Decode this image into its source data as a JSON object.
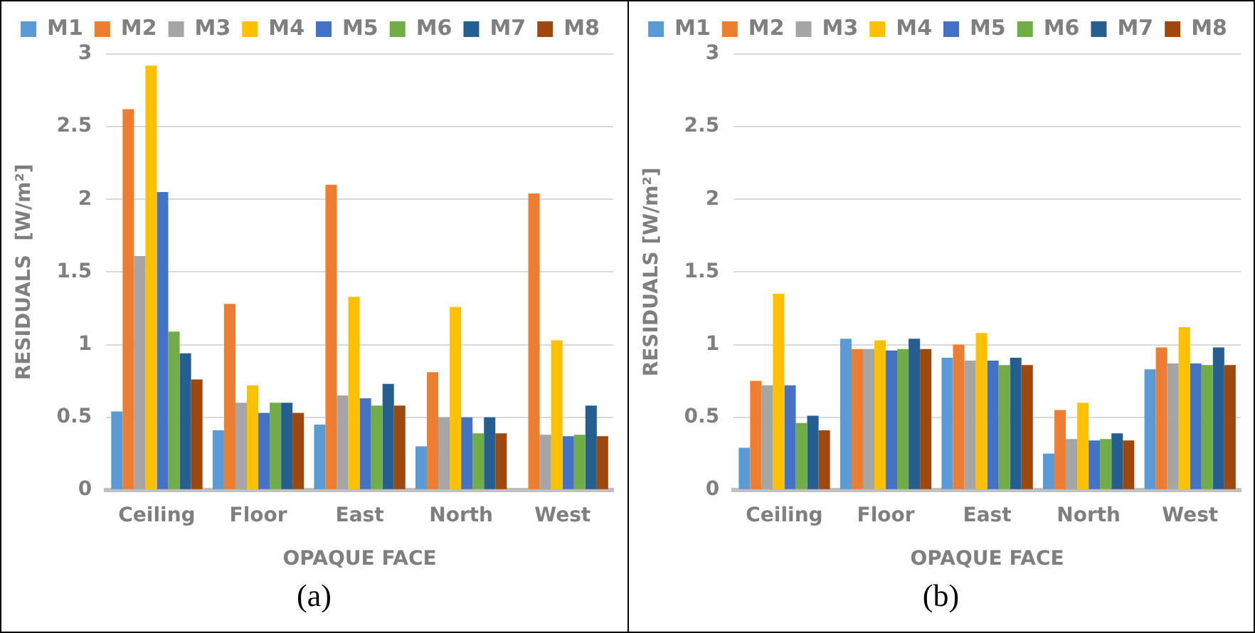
{
  "chart_data": [
    {
      "type": "bar",
      "categories": [
        "Ceiling",
        "Floor",
        "East",
        "North",
        "West"
      ],
      "xlabel": "OPAQUE FACE",
      "ylabel": "RESIDUALS  [W/m²]",
      "ylim": [
        0,
        3
      ],
      "yticks": [
        0,
        0.5,
        1,
        1.5,
        2,
        2.5,
        3
      ],
      "grid": "y",
      "legend": "top",
      "annotations": [
        "(a)"
      ],
      "series": [
        {
          "name": "M1",
          "color": "#5b9bd5",
          "values": [
            0.54,
            0.41,
            0.45,
            0.3,
            0
          ]
        },
        {
          "name": "M2",
          "color": "#ed7d31",
          "values": [
            2.62,
            1.28,
            2.1,
            0.81,
            2.04
          ]
        },
        {
          "name": "M3",
          "color": "#a5a5a5",
          "values": [
            1.61,
            0.6,
            0.65,
            0.5,
            0.38
          ]
        },
        {
          "name": "M4",
          "color": "#ffc000",
          "values": [
            2.92,
            0.72,
            1.33,
            1.26,
            1.03
          ]
        },
        {
          "name": "M5",
          "color": "#4472c4",
          "values": [
            2.05,
            0.53,
            0.63,
            0.5,
            0.37
          ]
        },
        {
          "name": "M6",
          "color": "#70ad47",
          "values": [
            1.09,
            0.6,
            0.58,
            0.39,
            0.38
          ]
        },
        {
          "name": "M7",
          "color": "#255e91",
          "values": [
            0.94,
            0.6,
            0.73,
            0.5,
            0.58
          ]
        },
        {
          "name": "M8",
          "color": "#9e480e",
          "values": [
            0.76,
            0.53,
            0.58,
            0.39,
            0.37
          ]
        }
      ]
    },
    {
      "type": "bar",
      "categories": [
        "Ceiling",
        "Floor",
        "East",
        "North",
        "West"
      ],
      "xlabel": "OPAQUE FACE",
      "ylabel": "RESIDUALS [W/m²]",
      "ylim": [
        0,
        3
      ],
      "yticks": [
        0,
        0.5,
        1,
        1.5,
        2,
        2.5,
        3
      ],
      "grid": "y",
      "legend": "top",
      "annotations": [
        "(b)"
      ],
      "series": [
        {
          "name": "M1",
          "color": "#5b9bd5",
          "values": [
            0.29,
            1.04,
            0.91,
            0.25,
            0.83
          ]
        },
        {
          "name": "M2",
          "color": "#ed7d31",
          "values": [
            0.75,
            0.97,
            1.0,
            0.55,
            0.98
          ]
        },
        {
          "name": "M3",
          "color": "#a5a5a5",
          "values": [
            0.72,
            0.97,
            0.89,
            0.35,
            0.87
          ]
        },
        {
          "name": "M4",
          "color": "#ffc000",
          "values": [
            1.35,
            1.03,
            1.08,
            0.6,
            1.12
          ]
        },
        {
          "name": "M5",
          "color": "#4472c4",
          "values": [
            0.72,
            0.96,
            0.89,
            0.34,
            0.87
          ]
        },
        {
          "name": "M6",
          "color": "#70ad47",
          "values": [
            0.46,
            0.97,
            0.86,
            0.35,
            0.86
          ]
        },
        {
          "name": "M7",
          "color": "#255e91",
          "values": [
            0.51,
            1.04,
            0.91,
            0.39,
            0.98
          ]
        },
        {
          "name": "M8",
          "color": "#9e480e",
          "values": [
            0.41,
            0.97,
            0.86,
            0.34,
            0.86
          ]
        }
      ]
    }
  ]
}
